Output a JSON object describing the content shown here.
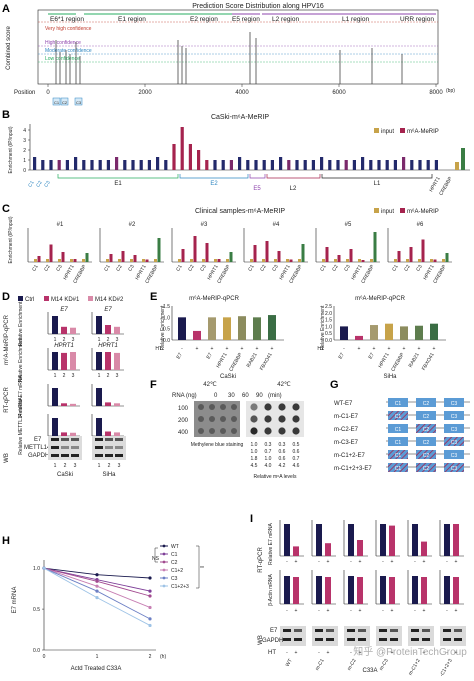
{
  "panelA": {
    "letter": "A",
    "title": "Prediction Score Distribution along HPV16",
    "ylabel": "Combined score",
    "xlabel_pos": "Position",
    "unit": "(bp)",
    "ticks": [
      "0",
      "2000",
      "4000",
      "6000",
      "8000"
    ],
    "regions": [
      "E6*1 region",
      "E1 region",
      "E2 region",
      "E5 region",
      "L2 region",
      "L1 region",
      "URR region"
    ],
    "confidence": [
      "Very high confidence",
      "High confidence",
      "Moderate confidence",
      "Low confidence"
    ],
    "sites": [
      "C1",
      "C2",
      "C3"
    ],
    "colors": {
      "very_high": "#c0392b",
      "high": "#8e44ad",
      "moderate": "#2e86c1",
      "low": "#27ae60"
    }
  },
  "panelB": {
    "letter": "B",
    "title": "CaSki-m⁶A-MeRIP",
    "ylabel": "Enrichment (IP/input)",
    "legend": [
      "input",
      "m⁶A-MeRIP"
    ],
    "yticks": [
      "0",
      "1",
      "2",
      "3",
      "4"
    ],
    "regions": [
      "E1",
      "E2",
      "E5",
      "L2",
      "L1"
    ],
    "sites": [
      "C1",
      "C2",
      "C3"
    ],
    "controls": [
      "HPRT1",
      "CREBBP"
    ],
    "colors": {
      "input": "#c7a34a",
      "merip": "#a5234e",
      "ctrl": "#3a7d44",
      "bar": "#232a6b"
    }
  },
  "panelC": {
    "letter": "C",
    "title": "Clinical samples-m⁶A-MeRIP",
    "ylabel": "Enrichment (IP/input)",
    "legend": [
      "input",
      "m⁶A-MeRIP"
    ],
    "samples": [
      "#1",
      "#2",
      "#3",
      "#4",
      "#5",
      "#6"
    ],
    "xlabels": [
      "C1",
      "C2",
      "C3",
      "HPRT1",
      "CREBBP"
    ],
    "yticks": [
      "0",
      "2",
      "4",
      "6",
      "8"
    ]
  },
  "panelD": {
    "letter": "D",
    "legend": [
      "Ctrl",
      "M14 KD#1",
      "M14 KD#2"
    ],
    "colors": [
      "#1a1a4e",
      "#b8336a",
      "#d98aa8"
    ],
    "section1": "m⁶A-MeRIP-qPCR",
    "section2": "RT-qPCR",
    "section3": "WB",
    "genes": [
      "E7",
      "HPRT1"
    ],
    "ylabels": [
      "Relative Enrichment",
      "Relative Enrichment",
      "Relative E7 mRNA",
      "Relative METTL14 mRNA"
    ],
    "lanes": [
      "1",
      "2",
      "3"
    ],
    "wb_labels": [
      "E7",
      "METTL14",
      "GAPDH"
    ],
    "cells": [
      "CaSki",
      "SiHa"
    ]
  },
  "panelE": {
    "letter": "E",
    "title": "m⁶A-MeRIP-qPCR",
    "ylabel": "Relative Enrichment",
    "ht": "HT",
    "signs": [
      "-",
      "+",
      "+",
      "+",
      "+",
      "+",
      "+"
    ],
    "xlabels": [
      "E7",
      "E7",
      "HPRT1",
      "CREBBP",
      "RAB21",
      "FBXO41"
    ],
    "cells": [
      "CaSki",
      "SiHa"
    ],
    "yticks": [
      "0.0",
      "0.5",
      "1.0",
      "1.5"
    ],
    "yticks2": [
      "0.0",
      "0.5",
      "1.0",
      "1.5",
      "2.0",
      "2.5"
    ]
  },
  "panelF": {
    "letter": "F",
    "temp": "42℃",
    "rna_label": "RNA (ng)",
    "rna": [
      "100",
      "200",
      "400"
    ],
    "times": [
      "0",
      "30",
      "60",
      "90"
    ],
    "time_unit": "(min)",
    "stain": "Methylene blue staining",
    "levels_label": "Relative m⁶A levels",
    "levels": [
      [
        "1.0",
        "0.3",
        "0.3",
        "0.5"
      ],
      [
        "1.0",
        "0.7",
        "0.6",
        "0.6"
      ],
      [
        "1.8",
        "1.0",
        "0.6",
        "0.7"
      ],
      [
        "4.5",
        "4.0",
        "4.2",
        "4.6"
      ]
    ]
  },
  "panelG": {
    "letter": "G",
    "constructs": [
      "WT-E7",
      "m-C1-E7",
      "m-C2-E7",
      "m-C3-E7",
      "m-C1+2-E7",
      "m-C1+2+3-E7"
    ],
    "sites": [
      "C1",
      "C2",
      "C3"
    ],
    "color": "#5b9bd5"
  },
  "panelH": {
    "letter": "H",
    "ylabel": "E7 mRNA",
    "xlabel": "Actd Treated C33A",
    "xticks": [
      "0",
      "1",
      "2"
    ],
    "xunit": "(h)",
    "yticks": [
      "0.0",
      "0.5",
      "1.0"
    ],
    "ns": "NS",
    "sig": "**",
    "series": [
      {
        "name": "WT",
        "color": "#1a1a4e",
        "values": [
          1.0,
          0.92,
          0.88
        ]
      },
      {
        "name": "C1",
        "color": "#7e3f98",
        "values": [
          1.0,
          0.86,
          0.72
        ]
      },
      {
        "name": "C2",
        "color": "#a24a8f",
        "values": [
          1.0,
          0.84,
          0.66
        ]
      },
      {
        "name": "C1+2",
        "color": "#c77fb3",
        "values": [
          1.0,
          0.78,
          0.52
        ]
      },
      {
        "name": "C3",
        "color": "#6c7fc4",
        "values": [
          1.0,
          0.72,
          0.38
        ]
      },
      {
        "name": "C1+2+3",
        "color": "#9ec3e6",
        "values": [
          1.0,
          0.64,
          0.3
        ]
      }
    ]
  },
  "panelI": {
    "letter": "I",
    "section1": "RT-qPCR",
    "section2": "WB",
    "ylabels": [
      "Relative E7 mRNA",
      "β-Actin mRNA"
    ],
    "wb_labels": [
      "E7",
      "GAPDH"
    ],
    "ht": "HT",
    "signs": [
      "-",
      "+"
    ],
    "groups": [
      "WT",
      "m-C1",
      "m-C2",
      "m-C3",
      "m-C1+2",
      "m-C1+2+3"
    ],
    "cell": "C33A",
    "watermark": "知乎 @ProteinTechGroup"
  }
}
